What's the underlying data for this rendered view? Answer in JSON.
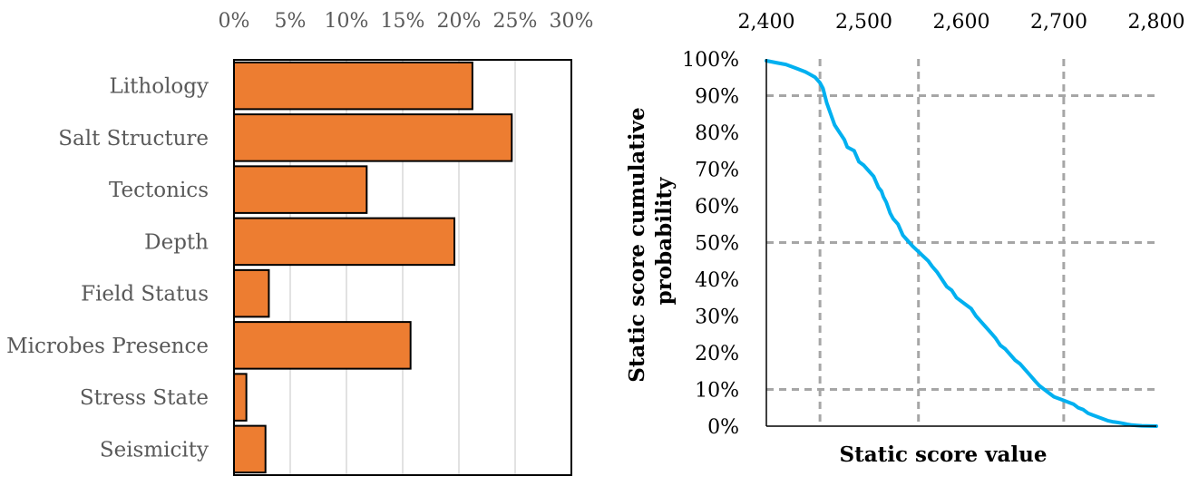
{
  "chart_data": [
    {
      "type": "bar",
      "orientation": "horizontal",
      "categories": [
        "Lithology",
        "Salt Structure",
        "Tectonics",
        "Depth",
        "Field Status",
        "Microbes Presence",
        "Stress State",
        "Seismicity"
      ],
      "values": [
        21.2,
        24.7,
        11.8,
        19.6,
        3.1,
        15.7,
        1.1,
        2.8
      ],
      "xlim": [
        0,
        30
      ],
      "x_ticks": [
        "0%",
        "5%",
        "10%",
        "15%",
        "20%",
        "25%",
        "30%"
      ],
      "x_axis_position": "top",
      "grid": "vertical",
      "bar_color": "#ed7d31",
      "title": "",
      "xlabel": "",
      "ylabel": ""
    },
    {
      "type": "line",
      "xlabel": "Static score value",
      "ylabel": "Static score cumulative probability",
      "xlim": [
        2400,
        2800
      ],
      "ylim": [
        0,
        100
      ],
      "x_ticks": [
        "2,400",
        "2,500",
        "2,600",
        "2,700",
        "2,800"
      ],
      "y_ticks": [
        "0%",
        "10%",
        "20%",
        "30%",
        "40%",
        "50%",
        "60%",
        "70%",
        "80%",
        "90%",
        "100%"
      ],
      "x_axis_position": "top",
      "line_color": "#00b0f0",
      "reference_lines": {
        "horizontal_percent": [
          90,
          50,
          10
        ],
        "vertical_values": [
          2455,
          2556,
          2705
        ]
      },
      "series": [
        {
          "x": [
            2400,
            2410,
            2420,
            2430,
            2440,
            2450,
            2455,
            2458,
            2462,
            2470,
            2475,
            2480,
            2483,
            2490,
            2495,
            2500,
            2505,
            2510,
            2515,
            2518,
            2520,
            2523,
            2527,
            2530,
            2535,
            2540,
            2545,
            2550,
            2556,
            2560,
            2566,
            2570,
            2575,
            2580,
            2585,
            2590,
            2595,
            2600,
            2605,
            2610,
            2615,
            2620,
            2625,
            2630,
            2635,
            2640,
            2645,
            2650,
            2655,
            2660,
            2665,
            2670,
            2675,
            2680,
            2685,
            2690,
            2695,
            2700,
            2705,
            2710,
            2715,
            2720,
            2725,
            2730,
            2735,
            2740,
            2745,
            2750,
            2755,
            2760,
            2765,
            2770,
            2775,
            2780,
            2785,
            2790,
            2795,
            2800
          ],
          "y": [
            99.5,
            99,
            98.5,
            97.5,
            96.5,
            95,
            93.5,
            92,
            88,
            82,
            80,
            78,
            76,
            75,
            72,
            71,
            69.5,
            68,
            65,
            64,
            62.5,
            61,
            58,
            56.5,
            55,
            52,
            50.5,
            49,
            47.5,
            46.5,
            45,
            43.5,
            42,
            40,
            38,
            37,
            35,
            34,
            33,
            32,
            30,
            28.5,
            27,
            25.5,
            24,
            22,
            21,
            19.5,
            18,
            17,
            15.5,
            14,
            12.5,
            11,
            10,
            9,
            8,
            7.5,
            7,
            6.5,
            6,
            5,
            4.5,
            3.5,
            3,
            2.5,
            2,
            1.5,
            1.2,
            1,
            0.8,
            0.5,
            0.3,
            0.2,
            0.1,
            0.05,
            0.02,
            0
          ]
        }
      ]
    }
  ]
}
